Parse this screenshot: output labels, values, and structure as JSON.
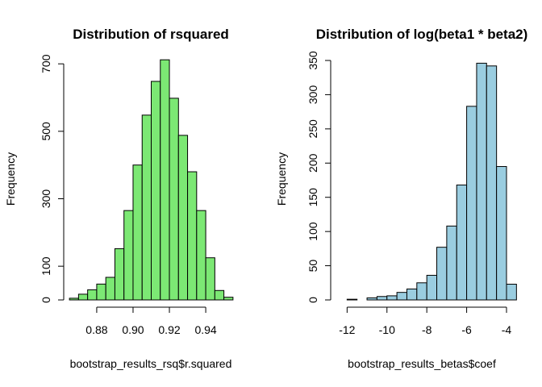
{
  "chart_data": [
    {
      "type": "bar",
      "title": "Distribution of rsquared",
      "xlabel": "bootstrap_results_rsq$r.squared",
      "ylabel": "Frequency",
      "bar_color": "#7CE874",
      "xlim": [
        0.8645,
        0.9555
      ],
      "ylim": [
        0,
        710
      ],
      "x_ticks": [
        0.88,
        0.9,
        0.92,
        0.94
      ],
      "x_tick_labels": [
        "0.88",
        "0.90",
        "0.92",
        "0.94"
      ],
      "y_ticks": [
        0,
        100,
        300,
        500,
        700
      ],
      "y_tick_labels": [
        "0",
        "100",
        "300",
        "500",
        "700"
      ],
      "bin_width": 0.005,
      "bin_start": 0.865,
      "values": [
        5,
        17,
        30,
        47,
        67,
        152,
        265,
        400,
        548,
        648,
        712,
        598,
        488,
        380,
        265,
        125,
        28,
        8
      ]
    },
    {
      "type": "bar",
      "title": "Distribution of log(beta1 * beta2)",
      "xlabel": "bootstrap_results_betas$coef",
      "ylabel": "Frequency",
      "bar_color": "#9ACDE0",
      "xlim": [
        -12.5,
        -4
      ],
      "ylim": [
        0,
        350
      ],
      "x_ticks": [
        -12,
        -10,
        -8,
        -6,
        -4
      ],
      "x_tick_labels": [
        "-12",
        "-10",
        "-8",
        "-6",
        "-4"
      ],
      "y_ticks": [
        0,
        50,
        100,
        150,
        200,
        250,
        300,
        350
      ],
      "y_tick_labels": [
        "0",
        "50",
        "100",
        "150",
        "200",
        "250",
        "300",
        "350"
      ],
      "bin_width": 0.5,
      "bin_start": -12.5,
      "values": [
        0,
        1,
        0,
        3,
        5,
        6,
        11,
        16,
        25,
        36,
        77,
        108,
        168,
        283,
        346,
        342,
        195,
        23
      ]
    }
  ]
}
